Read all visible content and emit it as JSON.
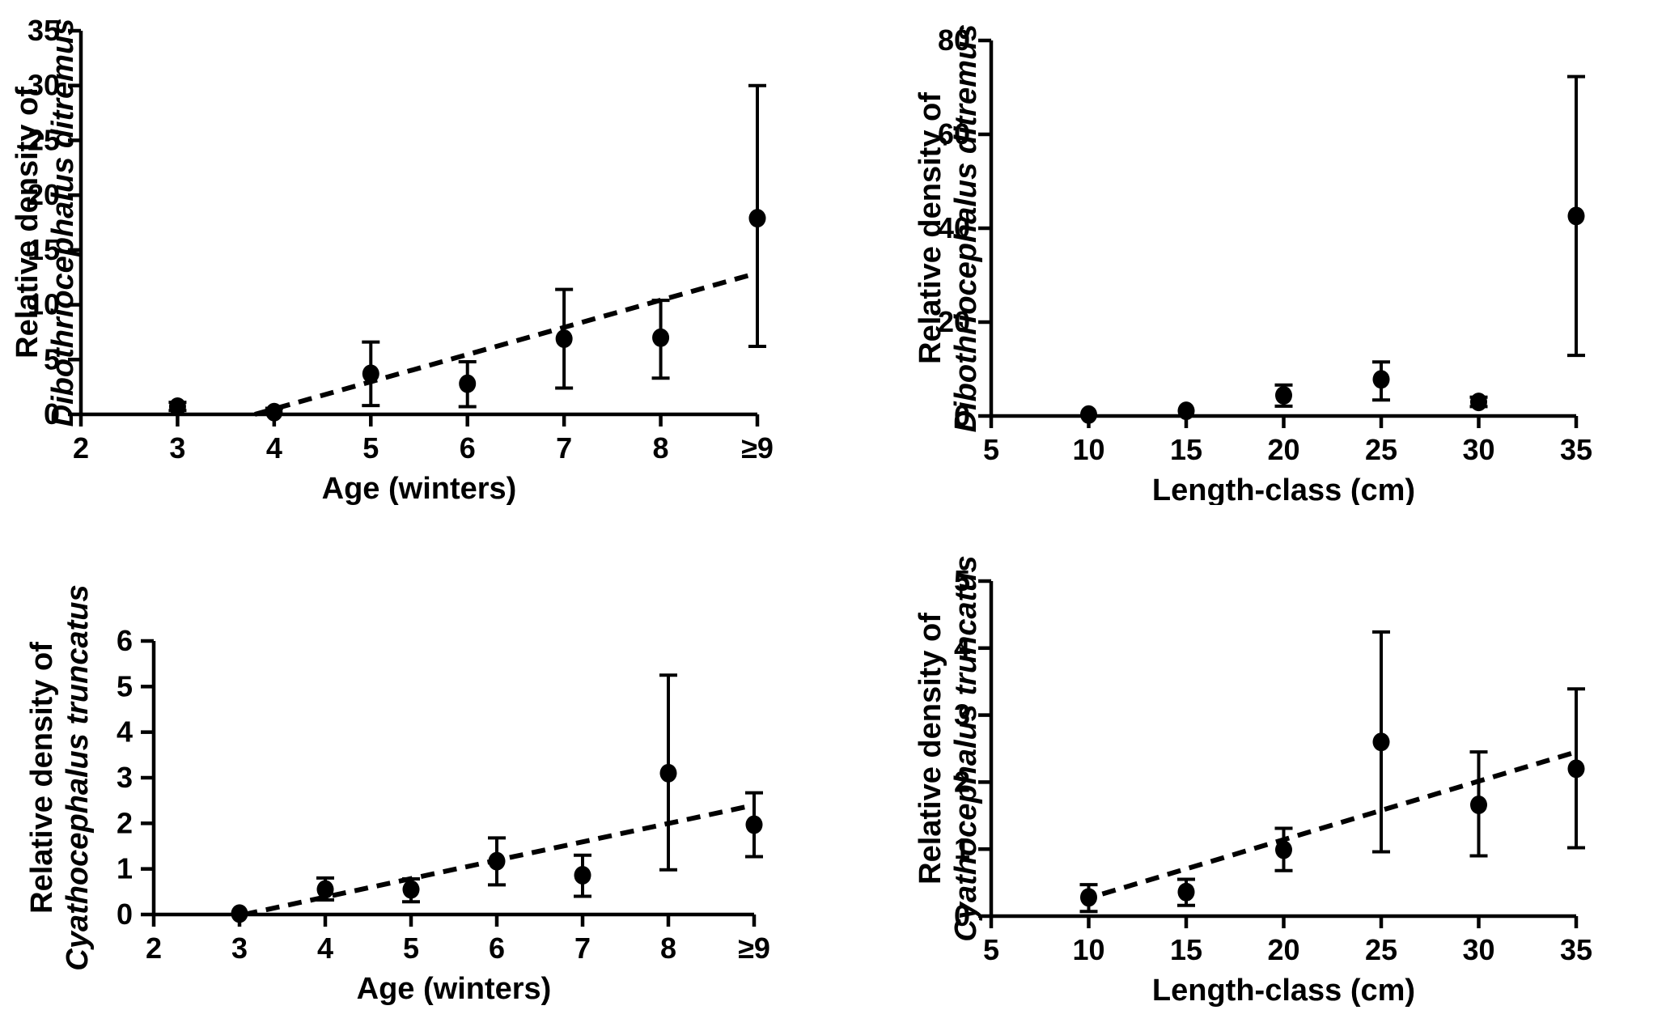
{
  "page": {
    "background": "#ffffff",
    "ink": "#000000",
    "figure_type": "four-panel parasite relative-density scatter plots with error bars and dashed regression lines"
  },
  "chart_data": [
    {
      "id": "ditremus-age",
      "position": "top-left",
      "type": "scatter",
      "title": "",
      "xlabel": "Age (winters)",
      "ylabel_plain": "Relative density of",
      "ylabel_italic": "Dibothriocephalus ditremus",
      "xlim": [
        2,
        9
      ],
      "ylim": [
        0,
        35
      ],
      "x_tick_values": [
        2,
        3,
        4,
        5,
        6,
        7,
        8,
        9
      ],
      "x_tick_labels": [
        "2",
        "3",
        "4",
        "5",
        "6",
        "7",
        "8",
        "≥9"
      ],
      "y_ticks": [
        0,
        5,
        10,
        15,
        20,
        25,
        30,
        35
      ],
      "grid": false,
      "legend": "none",
      "points": [
        {
          "x": 3,
          "y": 0.7,
          "lo": 0.35,
          "hi": 1.1
        },
        {
          "x": 4,
          "y": 0.2,
          "lo": 0.0,
          "hi": 0.55
        },
        {
          "x": 5,
          "y": 3.7,
          "lo": 0.8,
          "hi": 6.6
        },
        {
          "x": 6,
          "y": 2.8,
          "lo": 0.7,
          "hi": 4.8
        },
        {
          "x": 7,
          "y": 6.9,
          "lo": 2.4,
          "hi": 11.4
        },
        {
          "x": 8,
          "y": 7.0,
          "lo": 3.3,
          "hi": 10.4
        },
        {
          "x": 9,
          "y": 17.9,
          "lo": 6.2,
          "hi": 30.0
        }
      ],
      "trend": {
        "style": "dashed",
        "x1": 3.8,
        "y1": 0.0,
        "x2": 9,
        "y2": 12.9
      }
    },
    {
      "id": "ditremus-length",
      "position": "top-right",
      "type": "scatter",
      "title": "",
      "xlabel": "Length-class (cm)",
      "ylabel_plain": "Relative density of",
      "ylabel_italic": "Dibothriocephalus ditremus",
      "xlim": [
        5,
        35
      ],
      "ylim": [
        0,
        80
      ],
      "x_tick_values": [
        5,
        10,
        15,
        20,
        25,
        30,
        35
      ],
      "x_tick_labels": [
        "5",
        "10",
        "15",
        "20",
        "25",
        "30",
        "35"
      ],
      "y_ticks": [
        0,
        20,
        40,
        60,
        80
      ],
      "grid": false,
      "legend": "none",
      "points": [
        {
          "x": 10,
          "y": 0.3,
          "lo": 0.3,
          "hi": 0.3
        },
        {
          "x": 15,
          "y": 1.1,
          "lo": 1.1,
          "hi": 1.1
        },
        {
          "x": 20,
          "y": 4.4,
          "lo": 2.1,
          "hi": 6.6
        },
        {
          "x": 25,
          "y": 7.8,
          "lo": 3.4,
          "hi": 11.5
        },
        {
          "x": 30,
          "y": 3.0,
          "lo": 2.0,
          "hi": 4.0
        },
        {
          "x": 35,
          "y": 42.6,
          "lo": 12.9,
          "hi": 72.3
        }
      ],
      "trend": null
    },
    {
      "id": "truncatus-age",
      "position": "bottom-left",
      "type": "scatter",
      "title": "",
      "xlabel": "Age (winters)",
      "ylabel_plain": "Relative density of",
      "ylabel_italic": "Cyathocephalus truncatus",
      "xlim": [
        2,
        9
      ],
      "ylim": [
        0,
        6
      ],
      "x_tick_values": [
        2,
        3,
        4,
        5,
        6,
        7,
        8,
        9
      ],
      "x_tick_labels": [
        "2",
        "3",
        "4",
        "5",
        "6",
        "7",
        "8",
        "≥9"
      ],
      "y_ticks": [
        0,
        1,
        2,
        3,
        4,
        5,
        6
      ],
      "grid": false,
      "legend": "none",
      "points": [
        {
          "x": 3,
          "y": 0.02,
          "lo": 0.02,
          "hi": 0.02
        },
        {
          "x": 4,
          "y": 0.55,
          "lo": 0.32,
          "hi": 0.8
        },
        {
          "x": 5,
          "y": 0.55,
          "lo": 0.28,
          "hi": 0.78
        },
        {
          "x": 6,
          "y": 1.17,
          "lo": 0.65,
          "hi": 1.68
        },
        {
          "x": 7,
          "y": 0.86,
          "lo": 0.4,
          "hi": 1.3
        },
        {
          "x": 8,
          "y": 3.1,
          "lo": 0.98,
          "hi": 5.25
        },
        {
          "x": 9,
          "y": 1.97,
          "lo": 1.27,
          "hi": 2.67
        }
      ],
      "trend": {
        "style": "dashed",
        "x1": 3.05,
        "y1": 0.0,
        "x2": 9,
        "y2": 2.4
      }
    },
    {
      "id": "truncatus-length",
      "position": "bottom-right",
      "type": "scatter",
      "title": "",
      "xlabel": "Length-class (cm)",
      "ylabel_plain": "Relative density of",
      "ylabel_italic": "Cyathocephalus truncatus",
      "xlim": [
        5,
        35
      ],
      "ylim": [
        0,
        5
      ],
      "x_tick_values": [
        5,
        10,
        15,
        20,
        25,
        30,
        35
      ],
      "x_tick_labels": [
        "5",
        "10",
        "15",
        "20",
        "25",
        "30",
        "35"
      ],
      "y_ticks": [
        0,
        1,
        2,
        3,
        4,
        5
      ],
      "grid": false,
      "legend": "none",
      "points": [
        {
          "x": 10,
          "y": 0.28,
          "lo": 0.07,
          "hi": 0.47
        },
        {
          "x": 15,
          "y": 0.36,
          "lo": 0.16,
          "hi": 0.55
        },
        {
          "x": 20,
          "y": 0.99,
          "lo": 0.68,
          "hi": 1.31
        },
        {
          "x": 25,
          "y": 2.6,
          "lo": 0.96,
          "hi": 4.24
        },
        {
          "x": 30,
          "y": 1.66,
          "lo": 0.9,
          "hi": 2.45
        },
        {
          "x": 35,
          "y": 2.2,
          "lo": 1.02,
          "hi": 3.39
        }
      ],
      "trend": {
        "style": "dashed",
        "x1": 10.7,
        "y1": 0.33,
        "x2": 35,
        "y2": 2.45
      }
    }
  ]
}
